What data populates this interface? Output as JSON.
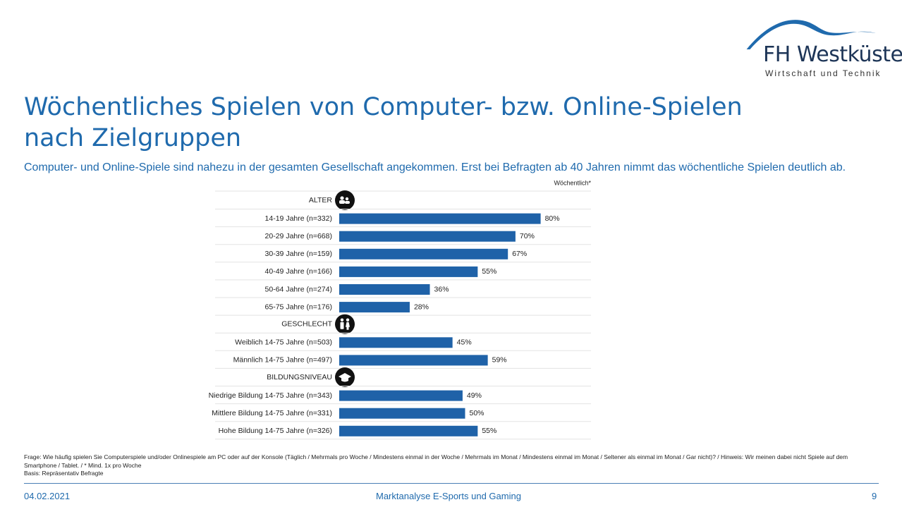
{
  "logo": {
    "name": "FH Westküste",
    "tagline": "Wirtschaft und Technik"
  },
  "slide": {
    "title": "Wöchentliches Spielen von Computer- bzw. Online-Spielen nach Zielgruppen",
    "subtitle": "Computer- und Online-Spiele sind nahezu in der gesamten Gesellschaft angekommen. Erst bei Befragten ab 40 Jahren nimmt das wöchentliche Spielen deutlich ab."
  },
  "chart_data": {
    "type": "bar",
    "orientation": "horizontal",
    "legend_label": "Wöchentlich*",
    "bar_color": "#1f62a8",
    "xlim": [
      0,
      100
    ],
    "value_suffix": "%",
    "groups": [
      {
        "heading": "ALTER",
        "icon": "people-icon",
        "categories": [
          "14-19 Jahre (n=332)",
          "20-29 Jahre (n=668)",
          "30-39 Jahre (n=159)",
          "40-49 Jahre (n=166)",
          "50-64 Jahre (n=274)",
          "65-75 Jahre (n=176)"
        ],
        "values": [
          80,
          70,
          67,
          55,
          36,
          28
        ]
      },
      {
        "heading": "GESCHLECHT",
        "icon": "gender-icon",
        "categories": [
          "Weiblich 14-75 Jahre (n=503)",
          "Männlich 14-75 Jahre (n=497)"
        ],
        "values": [
          45,
          59
        ]
      },
      {
        "heading": "BILDUNGSNIVEAU",
        "icon": "graduation-cap-icon",
        "categories": [
          "Niedrige Bildung 14-75 Jahre (n=343)",
          "Mittlere Bildung 14-75 Jahre (n=331)",
          "Hohe Bildung 14-75 Jahre (n=326)"
        ],
        "values": [
          49,
          50,
          55
        ]
      }
    ]
  },
  "footnote": {
    "question": "Frage: Wie häufig spielen Sie Computerspiele und/oder Onlinespiele am PC oder auf der Konsole (Täglich / Mehrmals pro Woche / Mindestens einmal in der Woche / Mehrmals im Monat / Mindestens einmal im Monat / Seltener als einmal im Monat / Gar nicht)? / Hinweis: Wir meinen dabei nicht Spiele auf dem Smartphone / Tablet. / * Mind. 1x pro Woche",
    "basis": "Basis: Repräsentativ Befragte"
  },
  "footer": {
    "date": "04.02.2021",
    "center": "Marktanalyse E-Sports und Gaming",
    "page": "9"
  }
}
